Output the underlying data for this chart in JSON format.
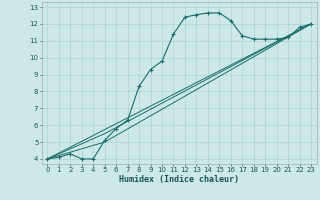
{
  "xlabel": "Humidex (Indice chaleur)",
  "bg_color": "#cce9e7",
  "grid_color": "#aed4d2",
  "line_color": "#1a6b6b",
  "xlim": [
    -0.5,
    23.5
  ],
  "ylim": [
    3.7,
    13.3
  ],
  "xticks": [
    0,
    1,
    2,
    3,
    4,
    5,
    6,
    7,
    8,
    9,
    10,
    11,
    12,
    13,
    14,
    15,
    16,
    17,
    18,
    19,
    20,
    21,
    22,
    23
  ],
  "yticks": [
    4,
    5,
    6,
    7,
    8,
    9,
    10,
    11,
    12,
    13
  ],
  "line1_x": [
    0,
    1,
    2,
    3,
    4,
    5,
    6,
    7,
    8,
    9,
    10,
    11,
    12,
    13,
    14,
    15,
    16,
    17,
    18,
    19,
    20,
    21,
    22,
    23
  ],
  "line1_y": [
    4.0,
    4.1,
    4.3,
    4.0,
    4.0,
    5.1,
    5.8,
    6.3,
    8.3,
    9.3,
    9.8,
    11.4,
    12.4,
    12.55,
    12.65,
    12.65,
    12.2,
    11.3,
    11.1,
    11.1,
    11.1,
    11.2,
    11.8,
    12.0
  ],
  "line2_x": [
    0,
    23
  ],
  "line2_y": [
    4.0,
    12.0
  ],
  "line3_x": [
    0,
    5,
    23
  ],
  "line3_y": [
    4.0,
    5.0,
    12.0
  ],
  "line4_x": [
    0,
    5,
    23
  ],
  "line4_y": [
    4.0,
    5.5,
    12.0
  ],
  "xlabel_fontsize": 6,
  "tick_fontsize": 5
}
